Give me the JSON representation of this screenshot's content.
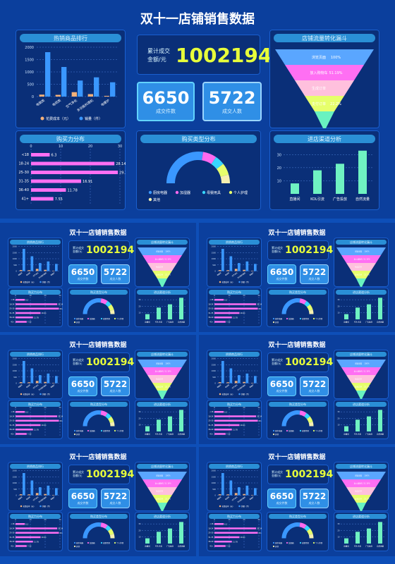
{
  "page": {
    "title": "双十一店铺销售数据",
    "bg": "#0e4fb8"
  },
  "panels": {
    "hot": {
      "title": "热销商品排行"
    },
    "total": {
      "label_line1": "累计成交",
      "label_line2": "金额/元",
      "value": "1002194"
    },
    "orders": {
      "value": "6650",
      "label": "成交件数"
    },
    "buyers": {
      "value": "5722",
      "label": "成交人数"
    },
    "funnel": {
      "title": "店铺流量转化漏斗"
    },
    "age": {
      "title": "购买力分布"
    },
    "type": {
      "title": "购买类型分布"
    },
    "channel": {
      "title": "进店渠道分析"
    }
  },
  "chart_data": [
    {
      "id": "hot",
      "type": "bar",
      "categories": [
        "电脑类",
        "电视类",
        "空气净化",
        "多功能料理机",
        "电暖炉"
      ],
      "series": [
        {
          "name": "花费成本（元）",
          "values": [
            80,
            70,
            180,
            100,
            30
          ],
          "color": "#f5b17a"
        },
        {
          "name": "销量（件）",
          "values": [
            1800,
            1200,
            650,
            780,
            580
          ],
          "color": "#3a97ff"
        }
      ],
      "ylim": [
        0,
        2000
      ],
      "yticks": [
        "2000",
        "1500",
        "1000",
        "500",
        "0"
      ]
    },
    {
      "id": "funnel",
      "type": "funnel",
      "stages": [
        {
          "label": "浏览页面",
          "value": "100%",
          "color": "#5aa6ff"
        },
        {
          "label": "放入购物车",
          "value": "51.19%",
          "color": "#ff6ff3"
        },
        {
          "label": "生成订单",
          "value": "",
          "color": "#ffc0dd"
        },
        {
          "label": "支付订单",
          "value": "22.2%",
          "color": "#e6ff6b"
        },
        {
          "label": "",
          "value": "",
          "color": "#69f2c0"
        }
      ]
    },
    {
      "id": "age",
      "type": "bar",
      "orientation": "horizontal",
      "categories": [
        "<18",
        "18-24",
        "25-30",
        "31-35",
        "36-40",
        "41+"
      ],
      "values": [
        6.3,
        28.14,
        29.3,
        16.91,
        11.78,
        7.55
      ],
      "labels": [
        "6.3",
        "28.14",
        "29.3",
        "16.91",
        "11.78",
        "7.55"
      ],
      "xlim": [
        0,
        30
      ],
      "xticks": [
        "0",
        "10",
        "20",
        "30"
      ]
    },
    {
      "id": "type",
      "type": "pie",
      "segments": [
        {
          "name": "厨房电器",
          "value": 55,
          "color": "#3a97ff"
        },
        {
          "name": "加湿器",
          "value": 14,
          "color": "#ff69ef"
        },
        {
          "name": "母婴用具",
          "value": 10,
          "color": "#37d6ff"
        },
        {
          "name": "个人护理",
          "value": 12,
          "color": "#e6ff6b"
        },
        {
          "name": "其他",
          "value": 9,
          "color": "#f6f0b0"
        }
      ]
    },
    {
      "id": "channel",
      "type": "bar",
      "categories": [
        "直播间",
        "KOL引流",
        "广告投放",
        "自然流量"
      ],
      "values": [
        8,
        18,
        23,
        33
      ],
      "ylim": [
        0,
        35
      ],
      "yticks": [
        "30",
        "20",
        "10"
      ]
    }
  ]
}
